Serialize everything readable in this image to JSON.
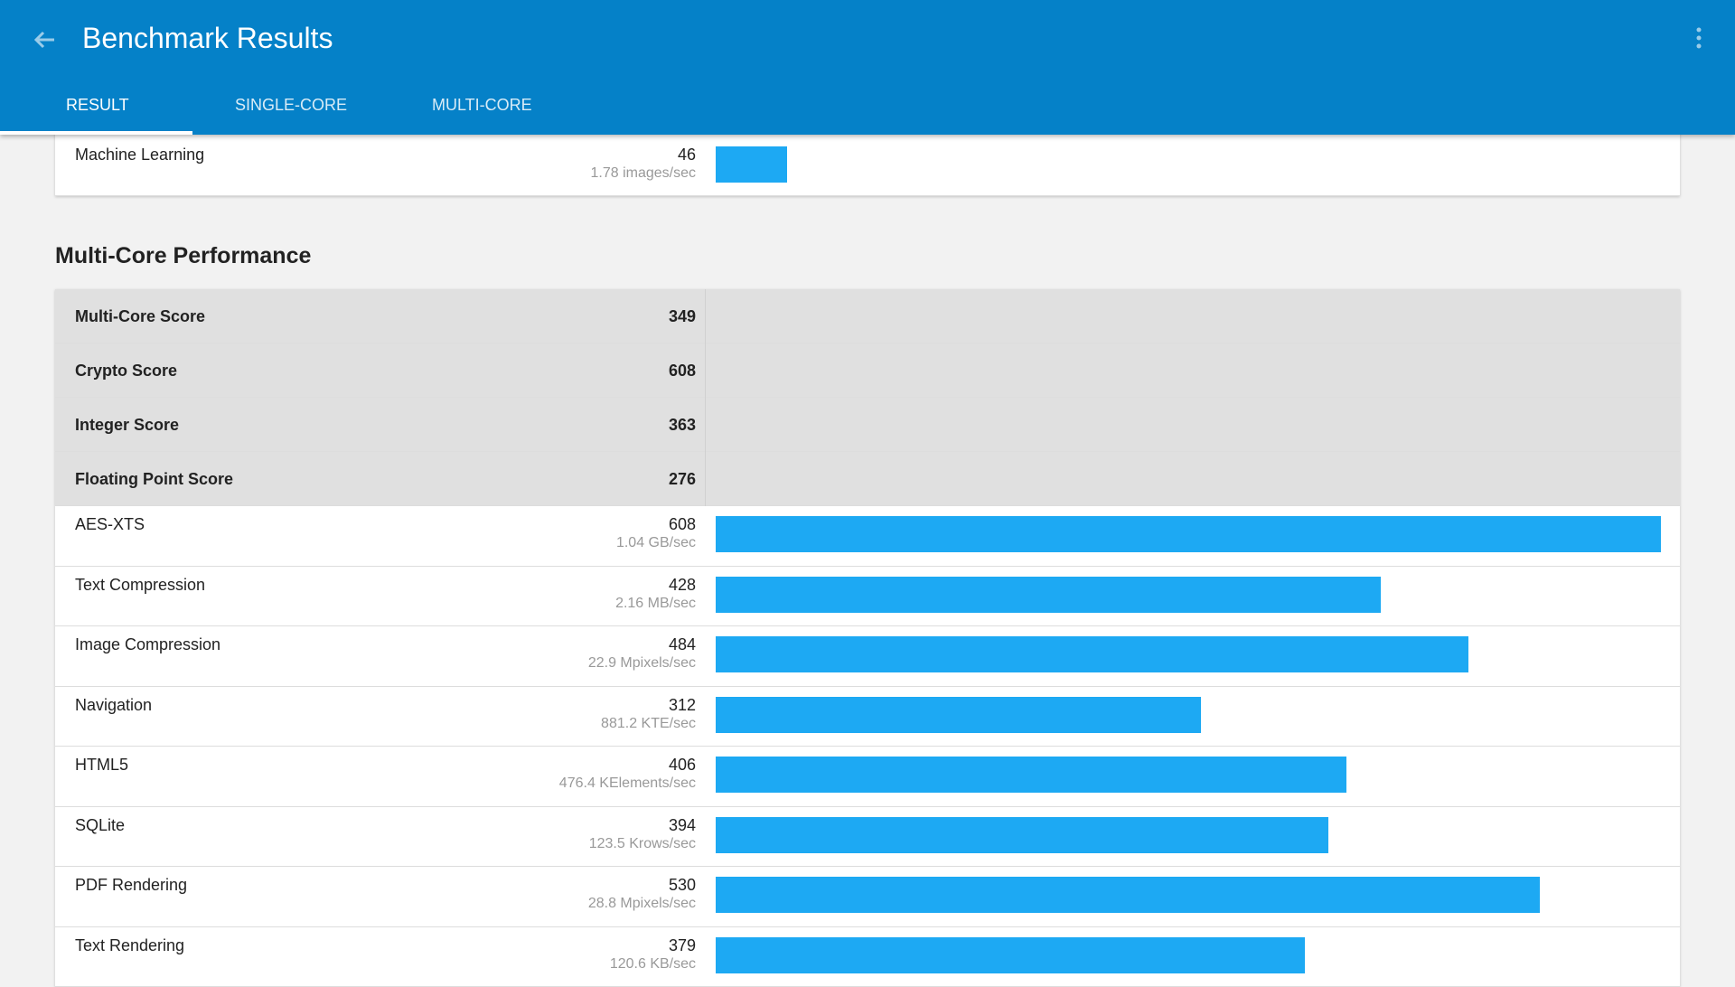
{
  "header": {
    "title": "Benchmark Results",
    "tabs": [
      "RESULT",
      "SINGLE-CORE",
      "MULTI-CORE"
    ]
  },
  "single_core": {
    "rows": [
      {
        "name": "Machine Learning",
        "score": 46,
        "rate": "1.78 images/sec"
      }
    ]
  },
  "multi_core": {
    "title": "Multi-Core Performance",
    "summary": [
      {
        "name": "Multi-Core Score",
        "score": 349
      },
      {
        "name": "Crypto Score",
        "score": 608
      },
      {
        "name": "Integer Score",
        "score": 363
      },
      {
        "name": "Floating Point Score",
        "score": 276
      }
    ],
    "rows": [
      {
        "name": "AES-XTS",
        "score": 608,
        "rate": "1.04 GB/sec"
      },
      {
        "name": "Text Compression",
        "score": 428,
        "rate": "2.16 MB/sec"
      },
      {
        "name": "Image Compression",
        "score": 484,
        "rate": "22.9 Mpixels/sec"
      },
      {
        "name": "Navigation",
        "score": 312,
        "rate": "881.2 KTE/sec"
      },
      {
        "name": "HTML5",
        "score": 406,
        "rate": "476.4 KElements/sec"
      },
      {
        "name": "SQLite",
        "score": 394,
        "rate": "123.5 Krows/sec"
      },
      {
        "name": "PDF Rendering",
        "score": 530,
        "rate": "28.8 Mpixels/sec"
      },
      {
        "name": "Text Rendering",
        "score": 379,
        "rate": "120.6 KB/sec"
      }
    ]
  }
}
